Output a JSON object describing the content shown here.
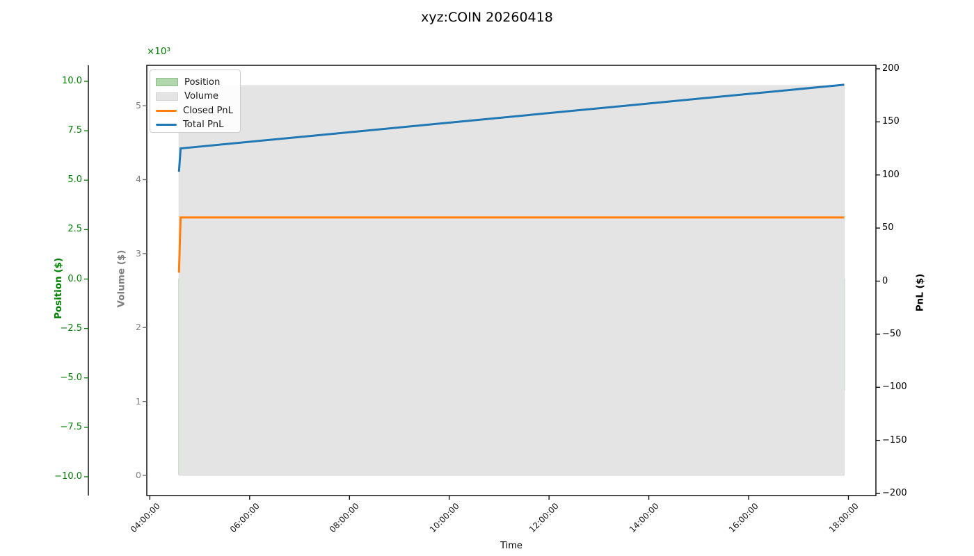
{
  "title": "xyz:COIN 20260418",
  "axes": {
    "x": {
      "label": "Time",
      "tick_labels": [
        "04:00:00",
        "06:00:00",
        "08:00:00",
        "10:00:00",
        "12:00:00",
        "14:00:00",
        "16:00:00",
        "18:00:00"
      ]
    },
    "position": {
      "label": "Position ($)",
      "color": "#008000",
      "tick_labels": [
        "10.0",
        "7.5",
        "5.0",
        "2.5",
        "0.0",
        "−2.5",
        "−5.0",
        "−7.5",
        "−10.0"
      ]
    },
    "volume": {
      "label": "Volume ($)",
      "color": "#808080",
      "offset_text": "×10³",
      "tick_labels": [
        "5",
        "4",
        "3",
        "2",
        "1",
        "0"
      ]
    },
    "pnl": {
      "label": "PnL ($)",
      "color": "#000000",
      "tick_labels": [
        "200",
        "150",
        "100",
        "50",
        "0",
        "−50",
        "−100",
        "−150",
        "−200"
      ]
    }
  },
  "legend": {
    "items": [
      {
        "label": "Position",
        "swatch": "patch",
        "color": "#b2d6ad",
        "edge": "#8fbc8a"
      },
      {
        "label": "Volume",
        "swatch": "patch",
        "color": "#e4e4e4",
        "edge": "#d2d2d2"
      },
      {
        "label": "Closed PnL",
        "swatch": "line",
        "color": "#ff7f0e",
        "edge": ""
      },
      {
        "label": "Total PnL",
        "swatch": "line",
        "color": "#1f77b4",
        "edge": ""
      }
    ]
  },
  "chart_data": {
    "type": "area",
    "title": "xyz:COIN 20260418",
    "xlabel": "Time",
    "x_start": "04:00:00",
    "x_end": "18:00:00",
    "x_tick_interval_hours": 2,
    "axis_ranges": {
      "position_dollars": [
        -10,
        10
      ],
      "volume_dollars_thousands": [
        0,
        5
      ],
      "pnl_dollars": [
        -200,
        200
      ]
    },
    "series": [
      {
        "name": "Position",
        "type": "area",
        "axis": "position",
        "color": "green",
        "fill_alpha": 0.32,
        "baseline": 0,
        "points": [
          [
            "04:35",
            0
          ],
          [
            "04:35",
            -9.9
          ],
          [
            "04:37",
            -5.6
          ],
          [
            "17:55",
            -5.6
          ]
        ]
      },
      {
        "name": "Volume",
        "type": "area",
        "axis": "volume",
        "color": "lightgray",
        "baseline": 0,
        "points": [
          [
            "04:35",
            5270
          ],
          [
            "17:55",
            5270
          ]
        ]
      },
      {
        "name": "Closed PnL",
        "type": "line",
        "axis": "pnl",
        "color": "#ff7f0e",
        "points": [
          [
            "04:35",
            8
          ],
          [
            "04:37",
            60
          ],
          [
            "17:55",
            60
          ]
        ]
      },
      {
        "name": "Total PnL",
        "type": "line",
        "axis": "pnl",
        "color": "#1f77b4",
        "points": [
          [
            "04:35",
            103
          ],
          [
            "04:37",
            125
          ],
          [
            "17:55",
            185
          ]
        ]
      }
    ],
    "legend_position": "upper left",
    "grid": false
  }
}
